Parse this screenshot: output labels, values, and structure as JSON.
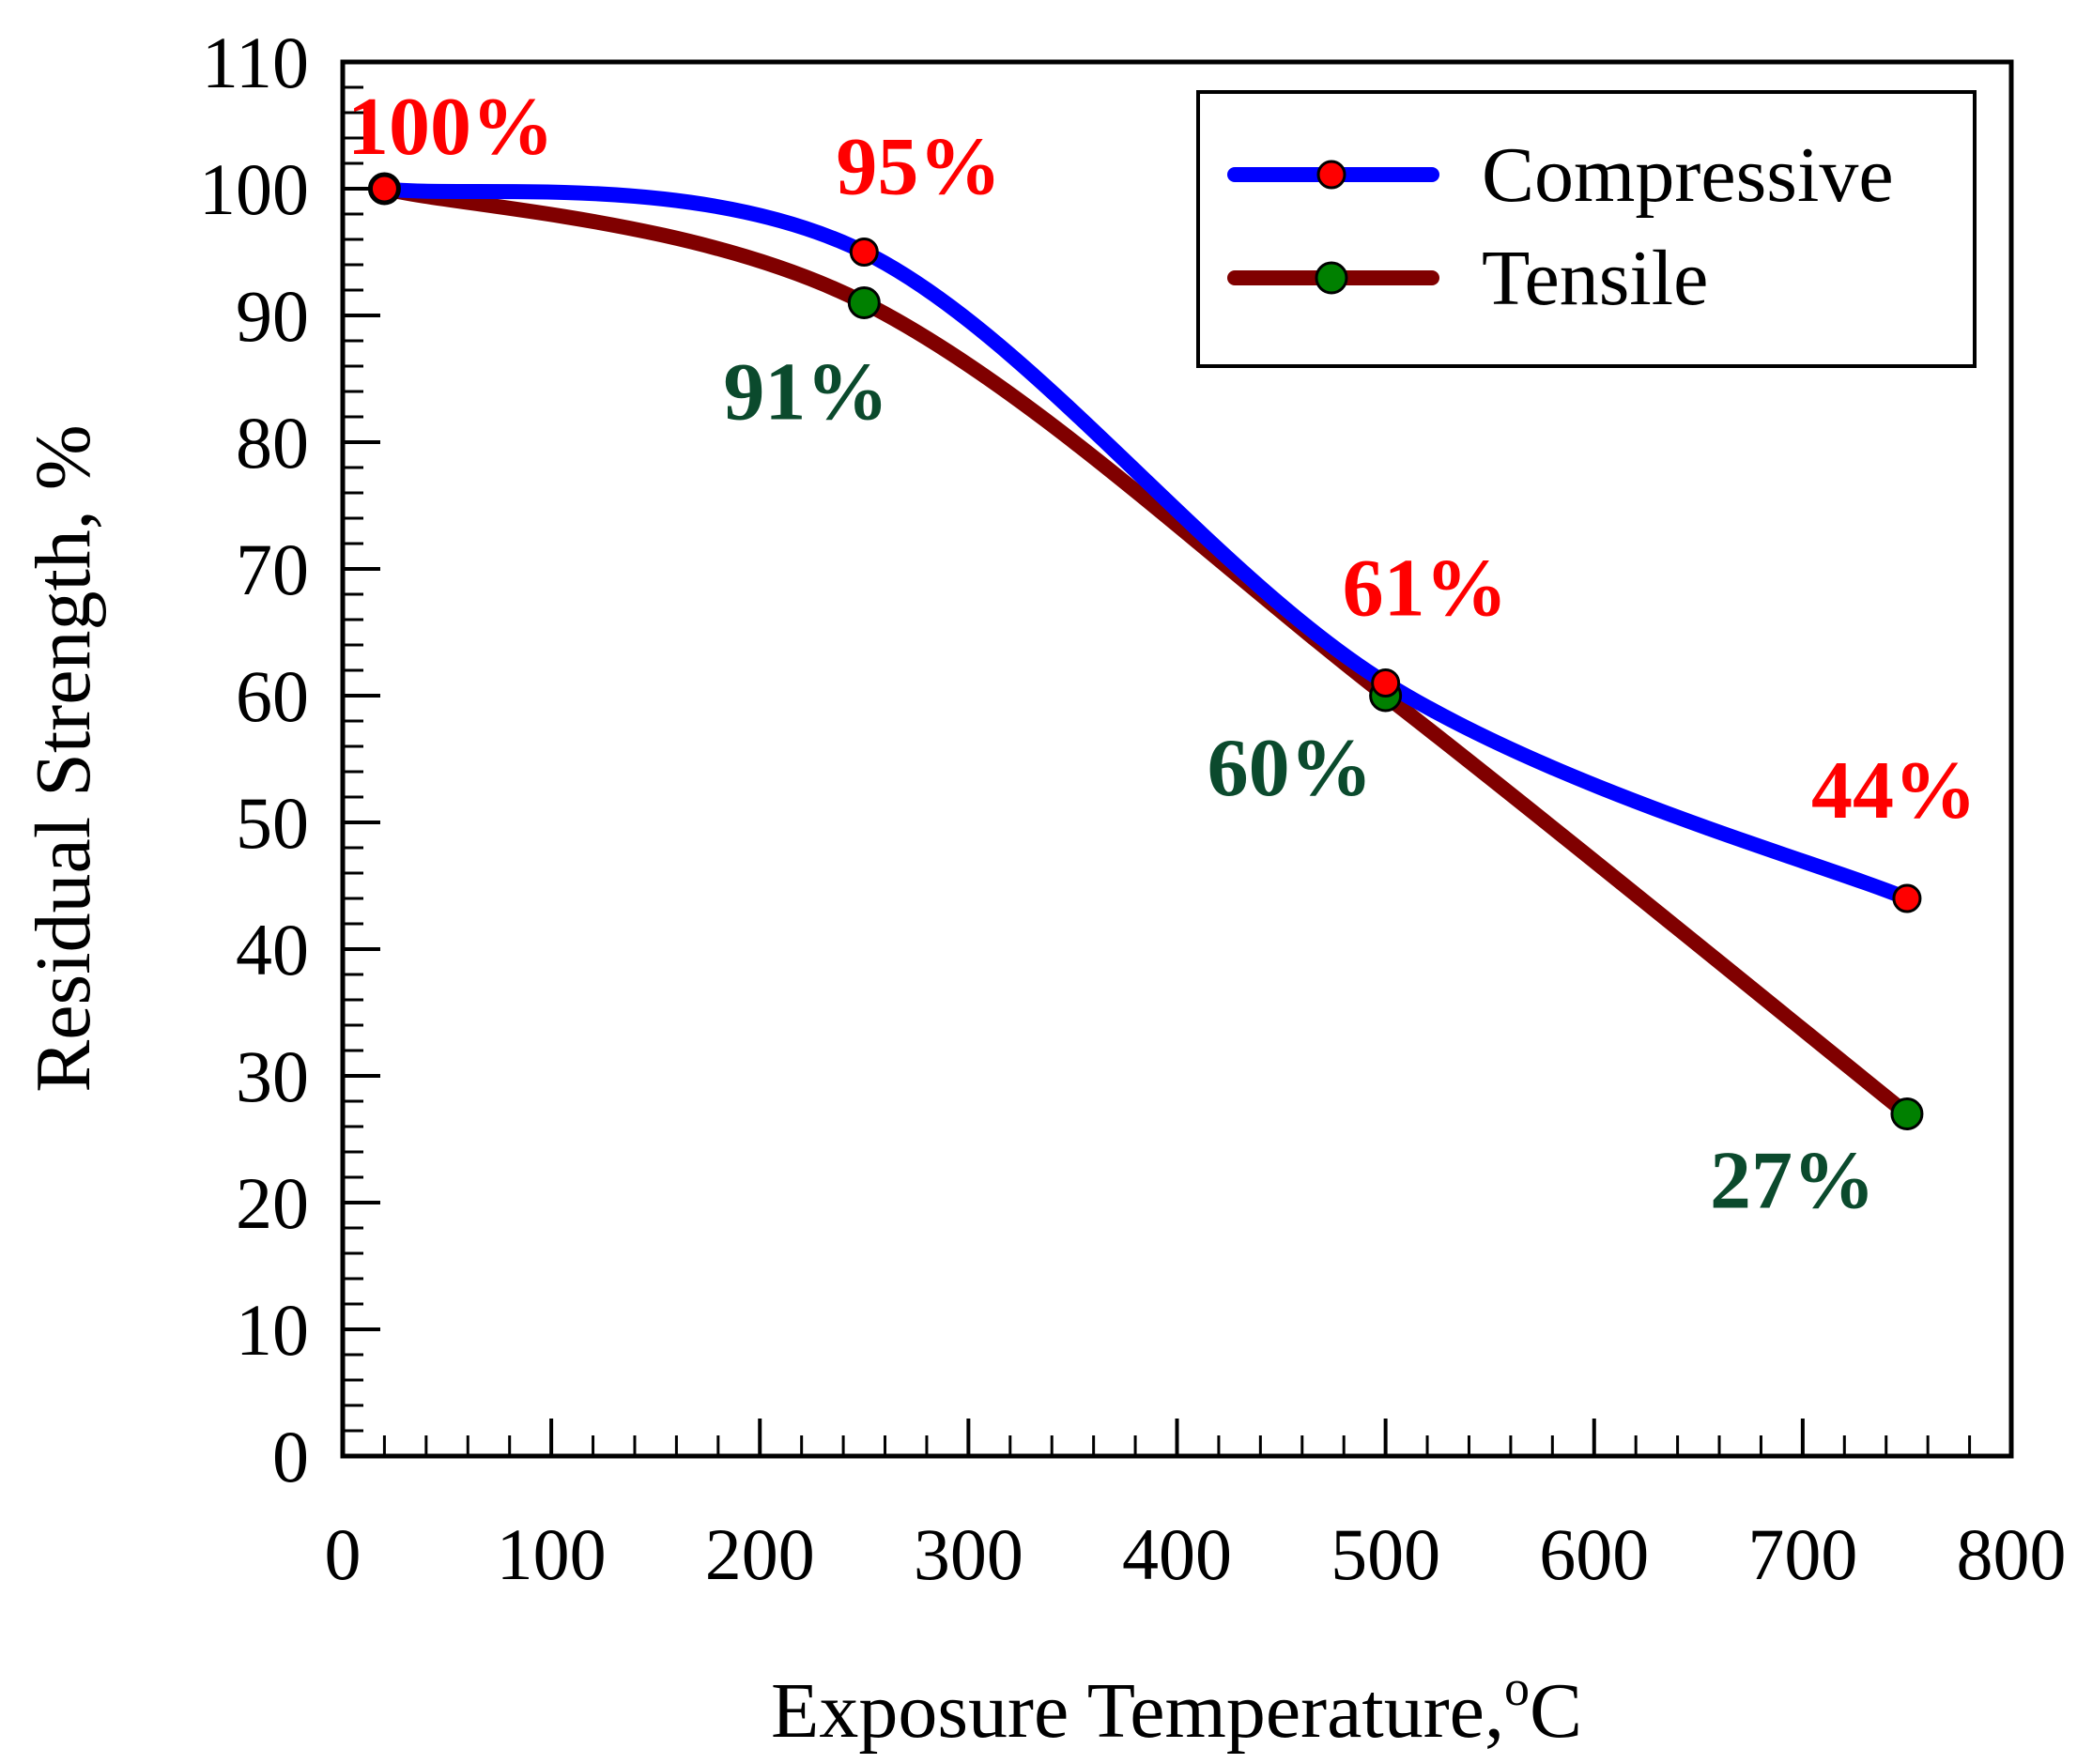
{
  "chart_data": {
    "type": "line",
    "title": "",
    "xlabel": "Exposure Temperature,",
    "xlabel_sup": "o",
    "xlabel_unit": "C",
    "ylabel": "Residual Strength, %",
    "xlim": [
      0,
      800
    ],
    "ylim": [
      0,
      110
    ],
    "x_ticks": [
      "0",
      "100",
      "200",
      "300",
      "400",
      "500",
      "600",
      "700",
      "800"
    ],
    "y_ticks": [
      "0",
      "10",
      "20",
      "30",
      "40",
      "50",
      "60",
      "70",
      "80",
      "90",
      "100",
      "110"
    ],
    "grid": false,
    "legend_position": "top-right",
    "x": [
      20,
      250,
      500,
      750
    ],
    "series": [
      {
        "name": "Compressive",
        "line_color": "#0000ff",
        "marker_color": "#ff0000",
        "label_color": "#ff0000",
        "values": [
          100,
          95,
          61,
          44
        ],
        "labels": [
          "100%",
          "95%",
          "61%",
          "44%"
        ]
      },
      {
        "name": "Tensile",
        "line_color": "#800000",
        "marker_color": "#008000",
        "label_color": "#0b4a2d",
        "values": [
          100,
          91,
          60,
          27
        ],
        "labels": [
          "",
          "91%",
          "60%",
          "27%"
        ]
      }
    ]
  }
}
